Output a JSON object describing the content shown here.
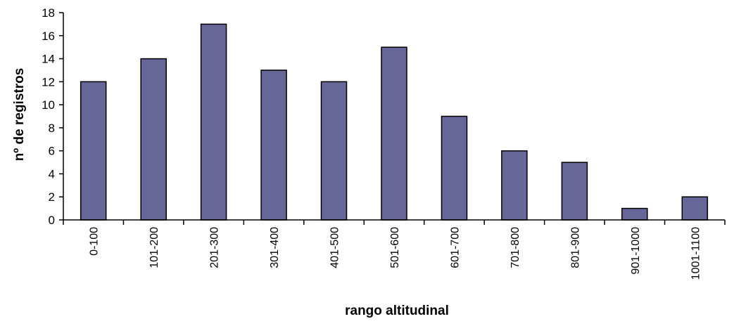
{
  "chart_data": {
    "type": "bar",
    "categories": [
      "0-100",
      "101-200",
      "201-300",
      "301-400",
      "401-500",
      "501-600",
      "601-700",
      "701-800",
      "801-900",
      "901-1000",
      "1001-1100"
    ],
    "values": [
      12,
      14,
      17,
      13,
      12,
      15,
      9,
      6,
      5,
      1,
      2
    ],
    "title": "",
    "xlabel": "rango altitudinal",
    "ylabel": "nº de registros",
    "ylim": [
      0,
      18
    ],
    "yticks": [
      0,
      2,
      4,
      6,
      8,
      10,
      12,
      14,
      16,
      18
    ],
    "grid": false,
    "legend": "none",
    "colors": {
      "bar_fill": "#666699",
      "bar_stroke": "#000000",
      "axis": "#000000"
    }
  }
}
